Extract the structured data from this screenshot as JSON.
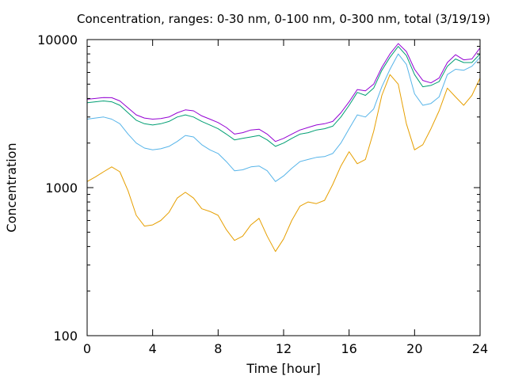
{
  "chart_data": {
    "type": "line",
    "title": "Concentration, ranges: 0-30 nm, 0-100 nm, 0-300 nm, total (3/19/19)",
    "xlabel": "Time [hour]",
    "ylabel": "Concentration",
    "xlim": [
      0,
      24
    ],
    "ylim": [
      100,
      10000
    ],
    "yscale": "log",
    "grid": false,
    "legend": "none",
    "x_ticks": [
      0,
      4,
      8,
      12,
      16,
      20,
      24
    ],
    "x_tick_labels": [
      "0",
      "4",
      "8",
      "12",
      "16",
      "20",
      "24"
    ],
    "y_ticks": [
      100,
      1000,
      10000
    ],
    "y_tick_labels": [
      "100",
      "1000",
      "10000"
    ],
    "series": [
      {
        "color": "#9400d3",
        "x": [
          0,
          0.5,
          1,
          1.5,
          2,
          2.5,
          3,
          3.5,
          4,
          4.5,
          5,
          5.5,
          6,
          6.5,
          7,
          7.5,
          8,
          8.5,
          9,
          9.5,
          10,
          10.5,
          11,
          11.5,
          12,
          12.5,
          13,
          13.5,
          14,
          14.5,
          15,
          15.5,
          16,
          16.5,
          17,
          17.5,
          18,
          18.5,
          19,
          19.5,
          20,
          20.5,
          21,
          21.5,
          22,
          22.5,
          23,
          23.5,
          24
        ],
        "y": [
          3950,
          4000,
          4060,
          4050,
          3850,
          3450,
          3100,
          2950,
          2900,
          2930,
          3000,
          3200,
          3350,
          3300,
          3050,
          2900,
          2750,
          2550,
          2300,
          2350,
          2450,
          2480,
          2300,
          2050,
          2150,
          2300,
          2450,
          2550,
          2650,
          2700,
          2800,
          3200,
          3800,
          4600,
          4500,
          5000,
          6500,
          8000,
          9400,
          8300,
          6300,
          5300,
          5100,
          5500,
          7000,
          7900,
          7300,
          7400,
          8800
        ]
      },
      {
        "color": "#009e73",
        "x": [
          0,
          0.5,
          1,
          1.5,
          2,
          2.5,
          3,
          3.5,
          4,
          4.5,
          5,
          5.5,
          6,
          6.5,
          7,
          7.5,
          8,
          8.5,
          9,
          9.5,
          10,
          10.5,
          11,
          11.5,
          12,
          12.5,
          13,
          13.5,
          14,
          14.5,
          15,
          15.5,
          16,
          16.5,
          17,
          17.5,
          18,
          18.5,
          19,
          19.5,
          20,
          20.5,
          21,
          21.5,
          22,
          22.5,
          23,
          23.5,
          24
        ],
        "y": [
          3750,
          3800,
          3850,
          3800,
          3600,
          3200,
          2850,
          2700,
          2650,
          2700,
          2800,
          3000,
          3100,
          3000,
          2800,
          2650,
          2500,
          2300,
          2100,
          2150,
          2200,
          2250,
          2100,
          1900,
          2000,
          2150,
          2300,
          2350,
          2450,
          2500,
          2600,
          3000,
          3600,
          4400,
          4200,
          4700,
          6200,
          7600,
          9000,
          7800,
          5800,
          4800,
          4900,
          5200,
          6600,
          7400,
          7000,
          7000,
          8000
        ]
      },
      {
        "color": "#56b4e9",
        "x": [
          0,
          0.5,
          1,
          1.5,
          2,
          2.5,
          3,
          3.5,
          4,
          4.5,
          5,
          5.5,
          6,
          6.5,
          7,
          7.5,
          8,
          8.5,
          9,
          9.5,
          10,
          10.5,
          11,
          11.5,
          12,
          12.5,
          13,
          13.5,
          14,
          14.5,
          15,
          15.5,
          16,
          16.5,
          17,
          17.5,
          18,
          18.5,
          19,
          19.5,
          20,
          20.5,
          21,
          21.5,
          22,
          22.5,
          23,
          23.5,
          24
        ],
        "y": [
          2900,
          2950,
          3000,
          2900,
          2700,
          2300,
          2000,
          1850,
          1800,
          1830,
          1900,
          2050,
          2250,
          2200,
          1950,
          1800,
          1700,
          1500,
          1300,
          1320,
          1380,
          1400,
          1300,
          1100,
          1200,
          1350,
          1500,
          1550,
          1600,
          1620,
          1700,
          2000,
          2500,
          3100,
          3000,
          3400,
          4800,
          6300,
          8000,
          6800,
          4300,
          3600,
          3700,
          4100,
          5800,
          6300,
          6200,
          6600,
          7600
        ]
      },
      {
        "color": "#e69f00",
        "x": [
          0,
          0.5,
          1,
          1.5,
          2,
          2.5,
          3,
          3.5,
          4,
          4.5,
          5,
          5.5,
          6,
          6.5,
          7,
          7.5,
          8,
          8.5,
          9,
          9.5,
          10,
          10.5,
          11,
          11.5,
          12,
          12.5,
          13,
          13.5,
          14,
          14.5,
          15,
          15.5,
          16,
          16.5,
          17,
          17.5,
          18,
          18.5,
          19,
          19.5,
          20,
          20.5,
          21,
          21.5,
          22,
          22.5,
          23,
          23.5,
          24
        ],
        "y": [
          1100,
          1180,
          1280,
          1380,
          1280,
          950,
          650,
          550,
          560,
          600,
          680,
          850,
          930,
          850,
          720,
          690,
          650,
          520,
          440,
          470,
          560,
          620,
          470,
          370,
          450,
          600,
          750,
          800,
          780,
          820,
          1050,
          1400,
          1750,
          1450,
          1550,
          2400,
          4200,
          5800,
          5000,
          2700,
          1800,
          1950,
          2500,
          3300,
          4700,
          4100,
          3600,
          4200,
          5500
        ]
      }
    ]
  }
}
